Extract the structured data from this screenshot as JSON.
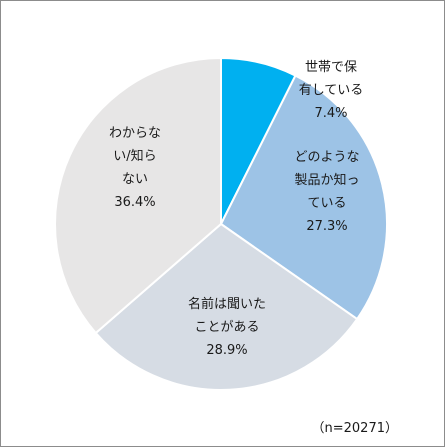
{
  "chart_data": {
    "type": "pie",
    "start_angle_deg": 0,
    "direction": "clockwise",
    "slices": [
      {
        "label_lines": [
          "世帯で保",
          "有している",
          "7.4%"
        ],
        "value": 7.4,
        "color": "#00b0f0"
      },
      {
        "label_lines": [
          "どのような",
          "製品か知っ",
          "ている",
          "27.3%"
        ],
        "value": 27.3,
        "color": "#9dc3e6"
      },
      {
        "label_lines": [
          "名前は聞いた",
          "ことがある",
          "28.9%"
        ],
        "value": 28.9,
        "color": "#d6dce4"
      },
      {
        "label_lines": [
          "わからな",
          "い/知ら",
          "ない",
          "36.4%"
        ],
        "value": 36.4,
        "color": "#e7e6e6"
      }
    ],
    "slice_border_color": "#ffffff",
    "legend": "none",
    "note": "（n=20271）"
  }
}
